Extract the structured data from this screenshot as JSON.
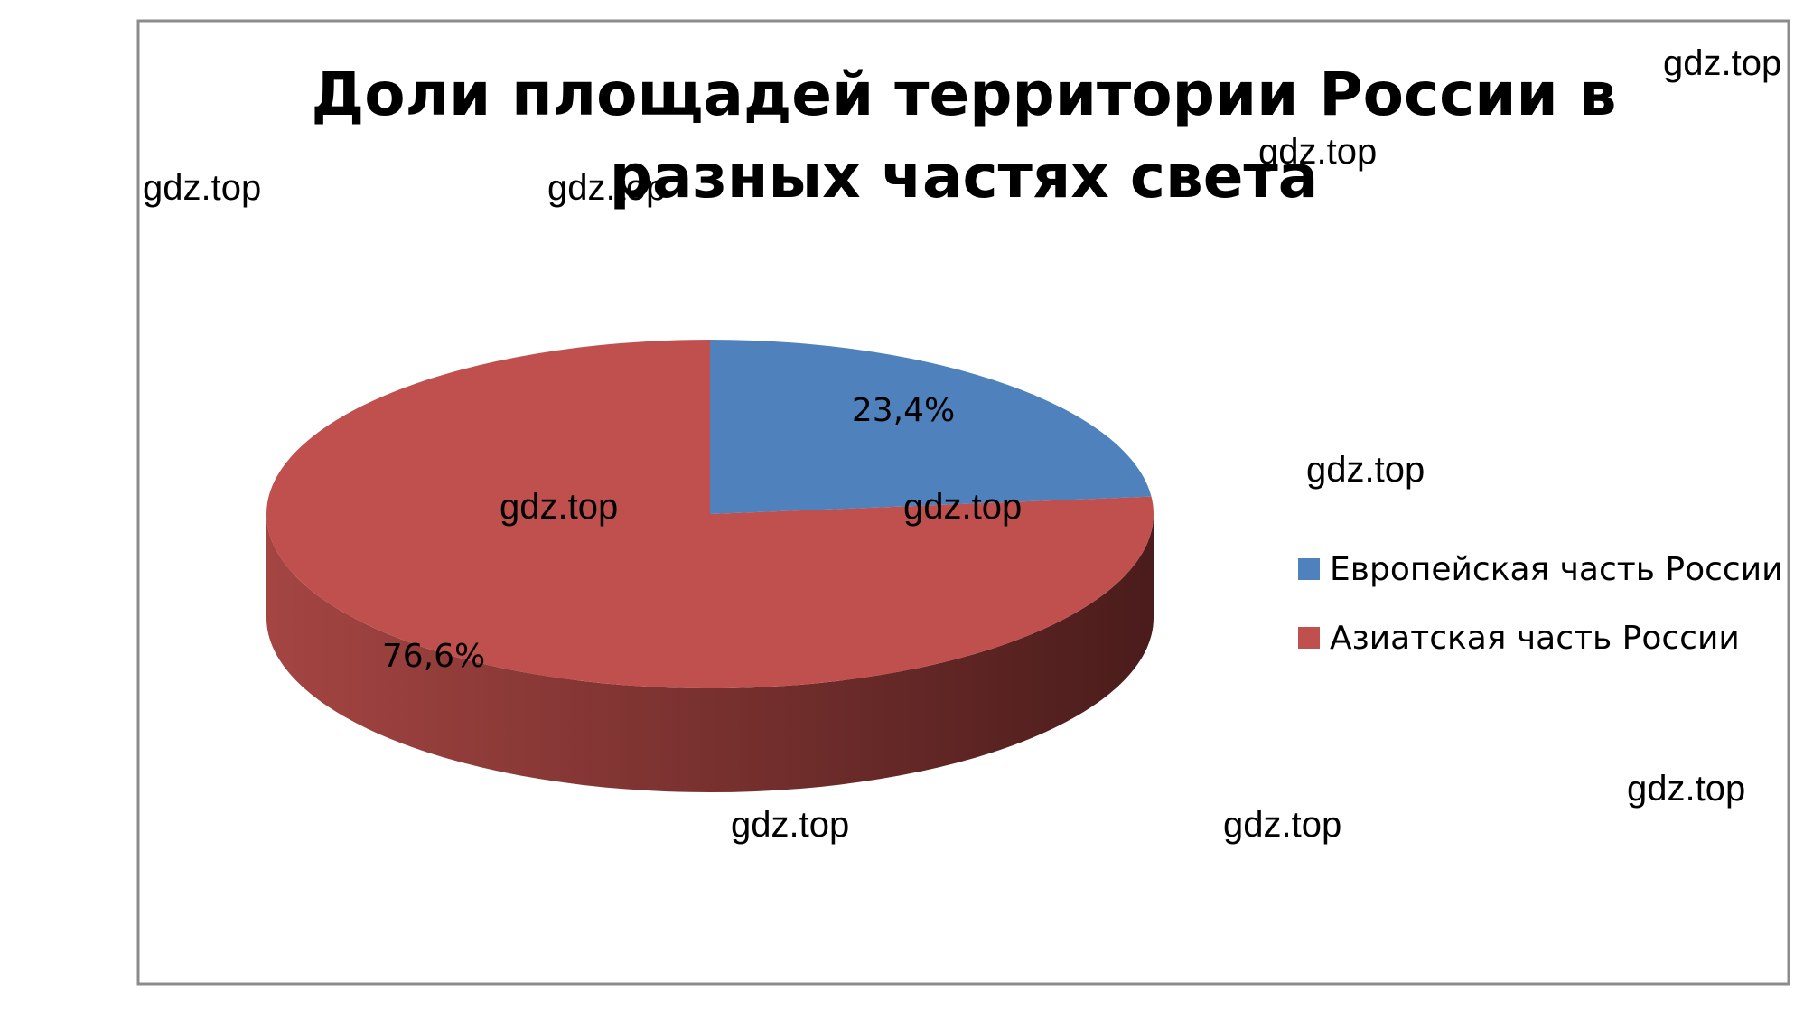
{
  "chart_data": {
    "type": "pie",
    "style": "3d",
    "title_lines": [
      "Доли площадей территории России в",
      "разных частях света"
    ],
    "categories": [
      "Европейская часть России",
      "Азиатская часть России"
    ],
    "values": [
      23.4,
      76.6
    ],
    "data_labels": [
      "23,4%",
      "76,6%"
    ],
    "colors": [
      "#4F81BD",
      "#C0504D"
    ],
    "legend": {
      "position": "right",
      "entries": [
        "Европейская часть России",
        "Азиатская часть России"
      ]
    }
  },
  "watermarks": [
    "gdz.top",
    "gdz.top",
    "gdz.top",
    "gdz.top",
    "gdz.top",
    "gdz.top",
    "gdz.top",
    "gdz.top",
    "gdz.top",
    "gdz.top"
  ]
}
